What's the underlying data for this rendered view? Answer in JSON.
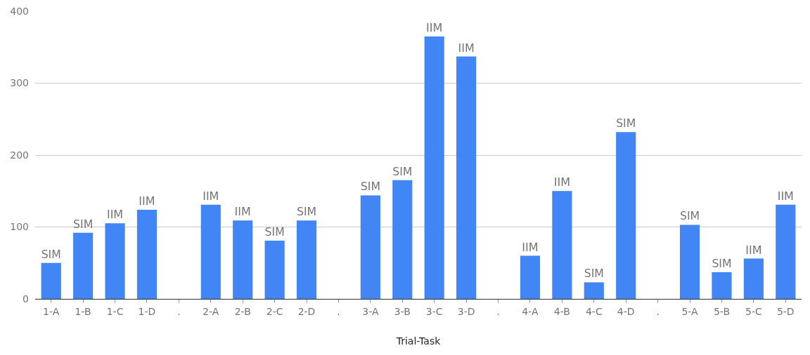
{
  "chart_data": {
    "type": "bar",
    "xlabel": "Trial-Task",
    "categories": [
      "1-A",
      "1-B",
      "1-C",
      "1-D",
      ".",
      "2-A",
      "2-B",
      "2-C",
      "2-D",
      ".",
      "3-A",
      "3-B",
      "3-C",
      "3-D",
      ".",
      "4-A",
      "4-B",
      "4-C",
      "4-D",
      ".",
      "5-A",
      "5-B",
      "5-C",
      "5-D"
    ],
    "values": [
      50,
      92,
      105,
      124,
      null,
      131,
      109,
      81,
      109,
      null,
      144,
      165,
      365,
      337,
      null,
      60,
      150,
      23,
      232,
      null,
      103,
      37,
      56,
      131
    ],
    "value_labels": [
      "SIM",
      "SIM",
      "IIM",
      "IIM",
      null,
      "IIM",
      "IIM",
      "SIM",
      "SIM",
      null,
      "SIM",
      "SIM",
      "IIM",
      "IIM",
      null,
      "IIM",
      "IIM",
      "SIM",
      "SIM",
      null,
      "SIM",
      "SIM",
      "IIM",
      "IIM"
    ],
    "color": "#4285f4",
    "ylim": [
      0,
      400
    ],
    "yticks": [
      0,
      100,
      200,
      300,
      400
    ],
    "grid": "y",
    "legend": false
  }
}
